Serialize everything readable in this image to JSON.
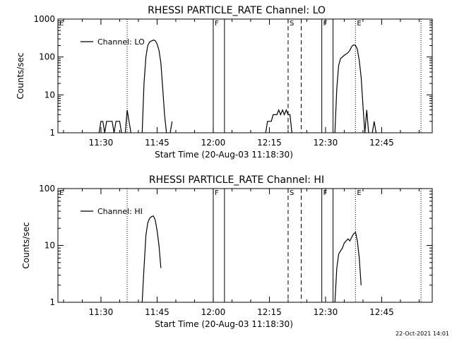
{
  "footer": {
    "timestamp": "22-Oct-2021 14:01"
  },
  "chart_data": [
    {
      "type": "line",
      "title": "RHESSI PARTICLE_RATE Channel: LO",
      "xlabel": "Start Time (20-Aug-03 11:18:30)",
      "ylabel": "Counts/sec",
      "yscale": "log",
      "ylim": [
        1,
        1000
      ],
      "yticks": [
        {
          "value": 1,
          "label": "1"
        },
        {
          "value": 10,
          "label": "10"
        },
        {
          "value": 100,
          "label": "100"
        },
        {
          "value": 1000,
          "label": "1000"
        }
      ],
      "xlim": [
        "11:18:30",
        "12:58:30"
      ],
      "xticks": [
        {
          "time": "11:30",
          "label": "11:30"
        },
        {
          "time": "11:45",
          "label": "11:45"
        },
        {
          "time": "12:00",
          "label": "12:00"
        },
        {
          "time": "12:15",
          "label": "12:15"
        },
        {
          "time": "12:30",
          "label": "12:30"
        },
        {
          "time": "12:45",
          "label": "12:45"
        }
      ],
      "legend": {
        "label": "Channel: LO",
        "position": "top-left"
      },
      "markers": [
        {
          "time": "11:18:30",
          "style": "dotted",
          "label": "E"
        },
        {
          "time": "11:37:00",
          "style": "dotted",
          "label": ""
        },
        {
          "time": "12:00:00",
          "style": "solid",
          "label": "F"
        },
        {
          "time": "12:03:00",
          "style": "solid",
          "label": ""
        },
        {
          "time": "12:20:00",
          "style": "dashed",
          "label": "S"
        },
        {
          "time": "12:23:30",
          "style": "dashed",
          "label": ""
        },
        {
          "time": "12:29:00",
          "style": "solid",
          "label": "F"
        },
        {
          "time": "12:32:00",
          "style": "solid",
          "label": ""
        },
        {
          "time": "12:38:00",
          "style": "dotted",
          "label": "E"
        },
        {
          "time": "12:55:30",
          "style": "dotted",
          "label": ""
        }
      ],
      "series": [
        {
          "name": "Channel: LO",
          "segments": [
            [
              [
                "11:29:30",
                1
              ],
              [
                "11:30:00",
                2
              ],
              [
                "11:30:30",
                2
              ],
              [
                "11:31:00",
                1
              ],
              [
                "11:31:30",
                2
              ],
              [
                "11:33:00",
                2
              ],
              [
                "11:33:30",
                1
              ],
              [
                "11:34:00",
                2
              ],
              [
                "11:35:00",
                2
              ],
              [
                "11:35:30",
                1
              ]
            ],
            [
              [
                "11:36:30",
                1
              ],
              [
                "11:37:00",
                4
              ],
              [
                "11:37:30",
                2
              ],
              [
                "11:38:00",
                1
              ]
            ],
            [
              [
                "11:41:00",
                1
              ],
              [
                "11:41:30",
                20
              ],
              [
                "11:42:00",
                100
              ],
              [
                "11:42:30",
                200
              ],
              [
                "11:43:00",
                250
              ],
              [
                "11:44:00",
                280
              ],
              [
                "11:44:30",
                270
              ],
              [
                "11:45:00",
                220
              ],
              [
                "11:45:30",
                150
              ],
              [
                "11:46:00",
                70
              ],
              [
                "11:46:30",
                15
              ],
              [
                "11:47:00",
                3
              ],
              [
                "11:47:30",
                1
              ]
            ],
            [
              [
                "11:48:30",
                1
              ],
              [
                "11:49:00",
                2
              ]
            ],
            [
              [
                "12:14:00",
                1
              ],
              [
                "12:14:30",
                2
              ],
              [
                "12:15:30",
                2
              ],
              [
                "12:16:00",
                3
              ],
              [
                "12:17:00",
                3
              ],
              [
                "12:17:30",
                4
              ],
              [
                "12:18:00",
                3
              ],
              [
                "12:18:30",
                4
              ],
              [
                "12:19:00",
                3
              ],
              [
                "12:19:30",
                4
              ],
              [
                "12:20:00",
                3
              ],
              [
                "12:20:30",
                3
              ],
              [
                "12:21:00",
                1
              ]
            ],
            [
              [
                "12:32:30",
                1
              ],
              [
                "12:33:00",
                15
              ],
              [
                "12:33:30",
                60
              ],
              [
                "12:34:00",
                90
              ],
              [
                "12:35:00",
                110
              ],
              [
                "12:36:00",
                130
              ],
              [
                "12:36:30",
                150
              ],
              [
                "12:37:00",
                190
              ],
              [
                "12:37:30",
                210
              ],
              [
                "12:38:00",
                200
              ],
              [
                "12:38:30",
                160
              ],
              [
                "12:39:00",
                80
              ],
              [
                "12:39:30",
                30
              ],
              [
                "12:40:00",
                5
              ],
              [
                "12:40:30",
                1
              ]
            ],
            [
              [
                "12:40:30",
                1
              ],
              [
                "12:41:00",
                4
              ],
              [
                "12:41:30",
                1
              ]
            ],
            [
              [
                "12:42:30",
                1
              ],
              [
                "12:43:00",
                2
              ],
              [
                "12:43:30",
                1
              ]
            ]
          ]
        }
      ]
    },
    {
      "type": "line",
      "title": "RHESSI PARTICLE_RATE Channel: HI",
      "xlabel": "Start Time (20-Aug-03 11:18:30)",
      "ylabel": "Counts/sec",
      "yscale": "log",
      "ylim": [
        1,
        100
      ],
      "yticks": [
        {
          "value": 1,
          "label": "1"
        },
        {
          "value": 10,
          "label": "10"
        },
        {
          "value": 100,
          "label": "100"
        }
      ],
      "xlim": [
        "11:18:30",
        "12:58:30"
      ],
      "xticks": [
        {
          "time": "11:30",
          "label": "11:30"
        },
        {
          "time": "11:45",
          "label": "11:45"
        },
        {
          "time": "12:00",
          "label": "12:00"
        },
        {
          "time": "12:15",
          "label": "12:15"
        },
        {
          "time": "12:30",
          "label": "12:30"
        },
        {
          "time": "12:45",
          "label": "12:45"
        }
      ],
      "legend": {
        "label": "Channel: HI",
        "position": "top-left"
      },
      "markers": [
        {
          "time": "11:18:30",
          "style": "dotted",
          "label": "E"
        },
        {
          "time": "11:37:00",
          "style": "dotted",
          "label": ""
        },
        {
          "time": "12:00:00",
          "style": "solid",
          "label": "F"
        },
        {
          "time": "12:03:00",
          "style": "solid",
          "label": ""
        },
        {
          "time": "12:20:00",
          "style": "dashed",
          "label": "S"
        },
        {
          "time": "12:23:30",
          "style": "dashed",
          "label": ""
        },
        {
          "time": "12:29:00",
          "style": "solid",
          "label": "F"
        },
        {
          "time": "12:32:00",
          "style": "solid",
          "label": ""
        },
        {
          "time": "12:38:00",
          "style": "dotted",
          "label": "E"
        },
        {
          "time": "12:55:30",
          "style": "dotted",
          "label": ""
        }
      ],
      "series": [
        {
          "name": "Channel: HI",
          "segments": [
            [
              [
                "11:41:00",
                1
              ],
              [
                "11:41:30",
                4
              ],
              [
                "11:42:00",
                15
              ],
              [
                "11:42:30",
                25
              ],
              [
                "11:43:00",
                30
              ],
              [
                "11:43:30",
                32
              ],
              [
                "11:44:00",
                33
              ],
              [
                "11:44:30",
                28
              ],
              [
                "11:45:00",
                18
              ],
              [
                "11:45:30",
                10
              ],
              [
                "11:46:00",
                4
              ]
            ],
            [
              [
                "12:32:30",
                1
              ],
              [
                "12:33:00",
                4
              ],
              [
                "12:33:30",
                7
              ],
              [
                "12:34:00",
                8
              ],
              [
                "12:34:30",
                9
              ],
              [
                "12:35:00",
                11
              ],
              [
                "12:35:30",
                12
              ],
              [
                "12:36:00",
                13
              ],
              [
                "12:36:30",
                12
              ],
              [
                "12:37:00",
                14
              ],
              [
                "12:37:30",
                16
              ],
              [
                "12:38:00",
                17
              ],
              [
                "12:38:30",
                12
              ],
              [
                "12:39:00",
                6
              ],
              [
                "12:39:30",
                2
              ]
            ]
          ]
        }
      ]
    }
  ]
}
